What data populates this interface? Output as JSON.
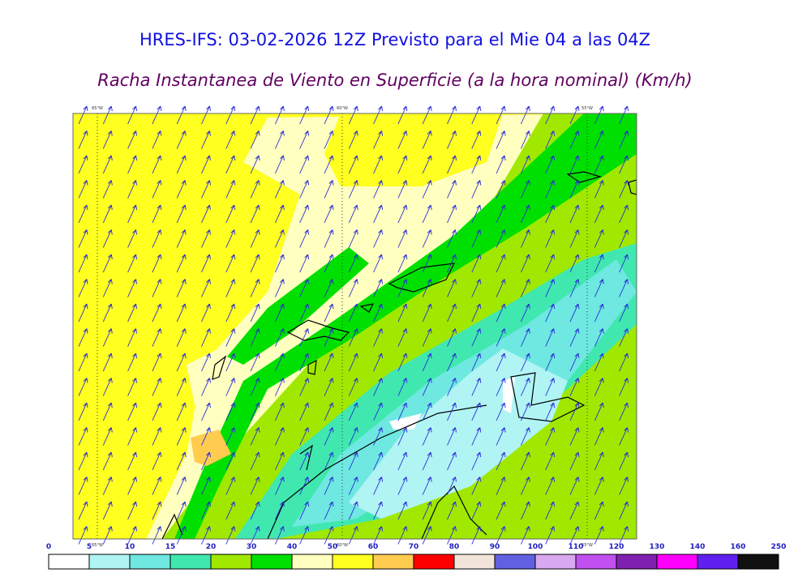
{
  "header": {
    "title": "HRES-IFS: 03-02-2026 12Z Previsto para el Mie 04 a las 04Z",
    "subtitle": "Racha Instantanea de Viento en Superficie (a la hora nominal) (Km/h)"
  },
  "map": {
    "longitudes": [
      "65°W",
      "60°W",
      "55°W"
    ]
  },
  "legend": {
    "labels": [
      0,
      5,
      10,
      15,
      20,
      30,
      40,
      50,
      60,
      70,
      80,
      90,
      100,
      110,
      120,
      130,
      140,
      160,
      250
    ],
    "colors": [
      "#ffffff",
      "#b0f4f4",
      "#6ee8e0",
      "#40e8b0",
      "#a0e800",
      "#00e000",
      "#ffffc0",
      "#ffff20",
      "#ffcc50",
      "#ff0000",
      "#f2e4d8",
      "#6060e0",
      "#d8a8f0",
      "#c050f0",
      "#8020b0",
      "#ff00ff",
      "#6020f0",
      "#101010"
    ]
  }
}
